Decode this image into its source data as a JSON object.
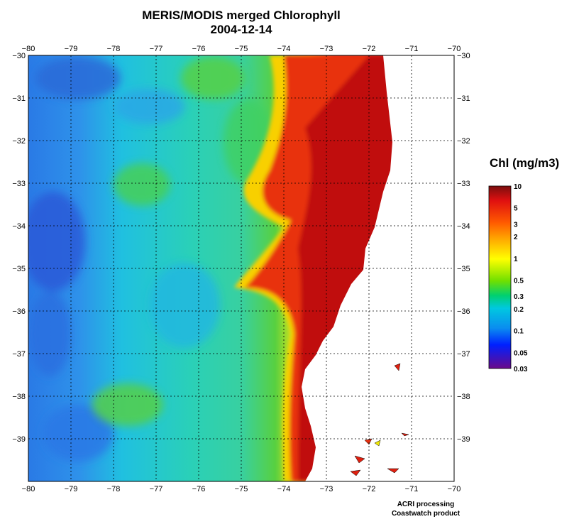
{
  "title": "MERIS/MODIS merged Chlorophyll",
  "date": "2004-12-14",
  "map": {
    "lon_range": [
      -80,
      -70
    ],
    "lat_range": [
      -40,
      -30
    ],
    "lon_ticks": [
      -80,
      -79,
      -78,
      -77,
      -76,
      -75,
      -74,
      -73,
      -72,
      -71,
      -70
    ],
    "lat_ticks": [
      -30,
      -31,
      -32,
      -33,
      -34,
      -35,
      -36,
      -37,
      -38,
      -39
    ],
    "grid": "dotted"
  },
  "colorbar": {
    "title": "Chl (mg/m3)",
    "labels": [
      "10",
      "5",
      "3",
      "2",
      "1",
      "0.5",
      "0.3",
      "0.2",
      "0.1",
      "0.05",
      "0.03"
    ],
    "values": [
      10,
      5,
      3,
      2,
      1,
      0.5,
      0.3,
      0.2,
      0.1,
      0.05,
      0.03
    ],
    "scale": "log",
    "colors": [
      "#7a0e0e",
      "#e01010",
      "#ff5a00",
      "#ffb000",
      "#ffff00",
      "#70e000",
      "#00d070",
      "#00c8e0",
      "#0a8cf0",
      "#0020ff",
      "#4a1490",
      "#6a0a8a"
    ]
  },
  "colors": {
    "deep_red": "#b01010",
    "red": "#e82010",
    "orange": "#ff8c00",
    "yellow": "#f0e800",
    "green": "#48d038",
    "cyan": "#20c8d8",
    "blue": "#2a80e8",
    "land": "#ffffff"
  },
  "credits": [
    "ACRI processing",
    "Coastwatch product"
  ]
}
